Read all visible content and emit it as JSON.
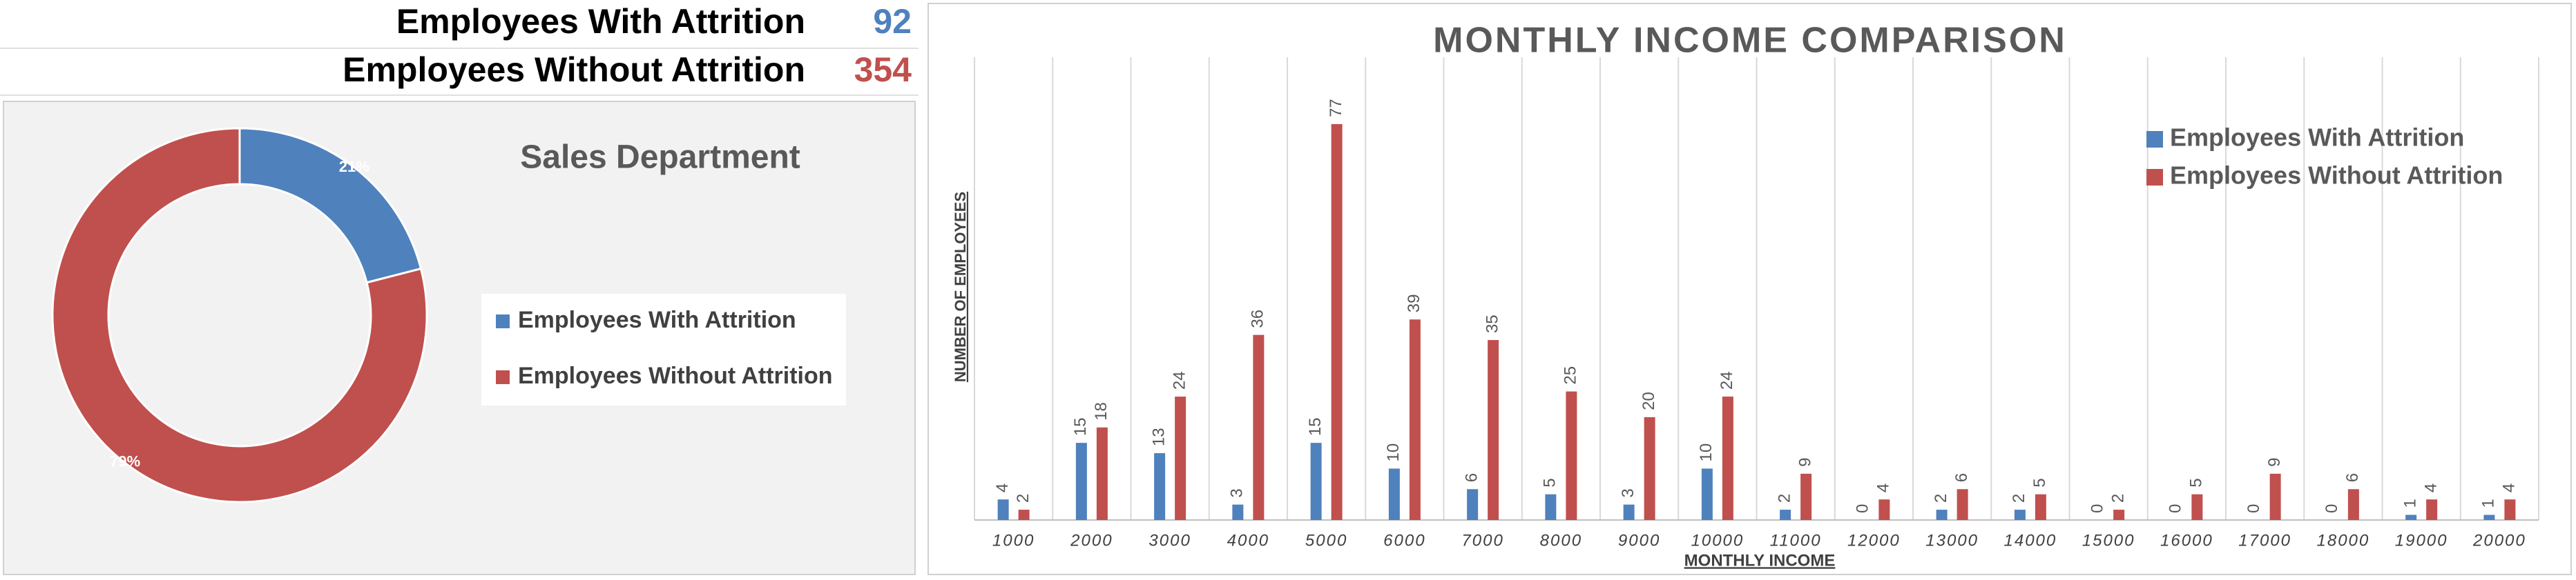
{
  "kpis": [
    {
      "label": "Employees With Attrition",
      "value": 92,
      "color": "#4f81bd"
    },
    {
      "label": "Employees Without Attrition",
      "value": 354,
      "color": "#c0504d"
    }
  ],
  "chart_data": [
    {
      "type": "donut",
      "title": "Sales Department",
      "categories": [
        "Employees With Attrition",
        "Employees Without Attrition"
      ],
      "values": [
        21,
        79
      ],
      "value_labels": [
        "21%",
        "79%"
      ],
      "colors": [
        "#4f81bd",
        "#c0504d"
      ]
    },
    {
      "type": "bar",
      "title": "MONTHLY INCOME COMPARISON",
      "x_label": "MONTHLY INCOME",
      "y_label": "NUMBER OF EMPLOYEES",
      "categories": [
        "1000",
        "2000",
        "3000",
        "4000",
        "5000",
        "6000",
        "7000",
        "8000",
        "9000",
        "10000",
        "11000",
        "12000",
        "13000",
        "14000",
        "15000",
        "16000",
        "17000",
        "18000",
        "19000",
        "20000"
      ],
      "series": [
        {
          "name": "Employees With Attrition",
          "color": "#4f81bd",
          "values": [
            4,
            15,
            13,
            3,
            15,
            10,
            6,
            5,
            3,
            10,
            2,
            0,
            2,
            2,
            0,
            0,
            0,
            0,
            1,
            1
          ]
        },
        {
          "name": "Employees Without Attrition",
          "color": "#c0504d",
          "values": [
            2,
            18,
            24,
            36,
            77,
            39,
            35,
            25,
            20,
            24,
            9,
            4,
            6,
            5,
            2,
            5,
            9,
            6,
            4,
            4
          ]
        }
      ],
      "ylim": [
        0,
        90
      ],
      "grid": "x",
      "legend": "top-right"
    }
  ]
}
